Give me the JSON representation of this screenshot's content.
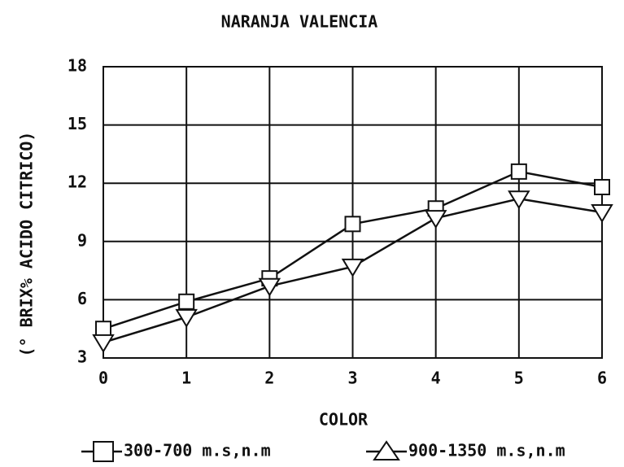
{
  "chart_data": {
    "type": "line",
    "title": "NARANJA  VALENCIA",
    "xlabel": "COLOR",
    "ylabel": "(° BRIX% ACIDO  CITRICO)",
    "x": [
      0,
      1,
      2,
      3,
      4,
      5,
      6
    ],
    "xlim": [
      0,
      6
    ],
    "xticks": [
      0,
      1,
      2,
      3,
      4,
      5,
      6
    ],
    "ylim": [
      3,
      18
    ],
    "yticks": [
      3,
      6,
      9,
      12,
      15,
      18
    ],
    "grid": true,
    "series": [
      {
        "name": "300-700  m.s,n.m",
        "color": "#111111",
        "marker": "square",
        "values": [
          4.5,
          5.9,
          7.1,
          9.9,
          10.7,
          12.6,
          11.8
        ]
      },
      {
        "name": "900-1350  m.s,n.m",
        "color": "#111111",
        "marker": "triangle",
        "values": [
          3.8,
          5.1,
          6.7,
          7.7,
          10.2,
          11.2,
          10.5
        ]
      }
    ]
  }
}
